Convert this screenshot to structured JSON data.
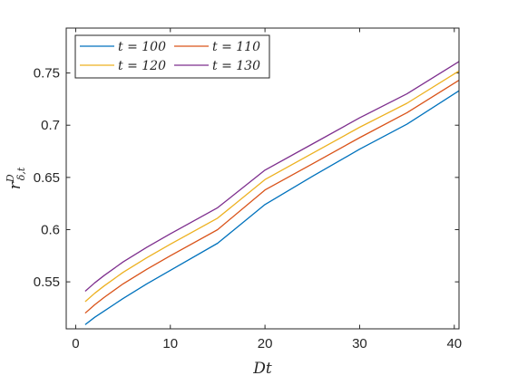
{
  "chart_data": {
    "type": "line",
    "xlabel": "Dt",
    "ylabel": "r^D_{δ,t}",
    "xlim": [
      -1,
      40.5
    ],
    "ylim": [
      0.505,
      0.793
    ],
    "xticks": [
      0,
      10,
      20,
      30,
      40
    ],
    "yticks": [
      0.55,
      0.6,
      0.65,
      0.7,
      0.75
    ],
    "ytick_labels": [
      "0.55",
      "0.6",
      "0.65",
      "0.7",
      "0.75"
    ],
    "grid": false,
    "legend_position": "top-left",
    "legend_columns": 2,
    "x": [
      1,
      2,
      3,
      5,
      7.5,
      10,
      15,
      20,
      25,
      30,
      35,
      40.5
    ],
    "series": [
      {
        "name": "t = 100",
        "color": "#0072BD",
        "values": [
          0.509,
          0.516,
          0.522,
          0.534,
          0.548,
          0.561,
          0.587,
          0.624,
          0.651,
          0.677,
          0.701,
          0.733
        ]
      },
      {
        "name": "t = 110",
        "color": "#D95319",
        "values": [
          0.52,
          0.528,
          0.535,
          0.548,
          0.562,
          0.575,
          0.6,
          0.638,
          0.663,
          0.688,
          0.712,
          0.743
        ]
      },
      {
        "name": "t = 120",
        "color": "#EDB120",
        "values": [
          0.531,
          0.539,
          0.546,
          0.559,
          0.573,
          0.586,
          0.611,
          0.648,
          0.673,
          0.698,
          0.721,
          0.752
        ]
      },
      {
        "name": "t = 130",
        "color": "#7E2F8E",
        "values": [
          0.541,
          0.549,
          0.556,
          0.569,
          0.583,
          0.596,
          0.621,
          0.657,
          0.682,
          0.707,
          0.73,
          0.761
        ]
      }
    ]
  }
}
